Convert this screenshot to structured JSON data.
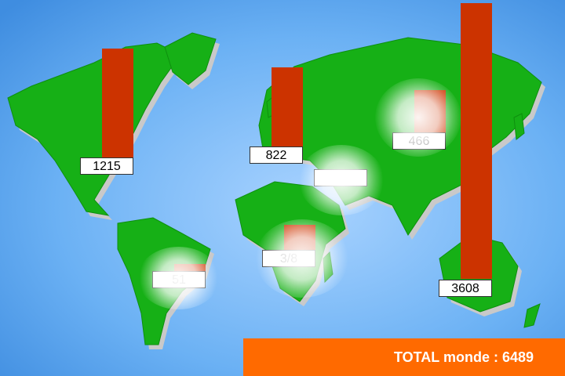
{
  "regions": {
    "north_america": {
      "value": "1215"
    },
    "south_america": {
      "value": "51"
    },
    "europe": {
      "value": "822"
    },
    "middle_east": {
      "value": ""
    },
    "africa": {
      "value": "3/8"
    },
    "russia": {
      "value": "466"
    },
    "asia": {
      "value": "3608"
    }
  },
  "total": {
    "label": "TOTAL monde : 6489"
  },
  "colors": {
    "ocean": "#5aa8f0",
    "land": "#16b016",
    "bar": "#cc3300",
    "total_bar": "#ff6a00"
  }
}
